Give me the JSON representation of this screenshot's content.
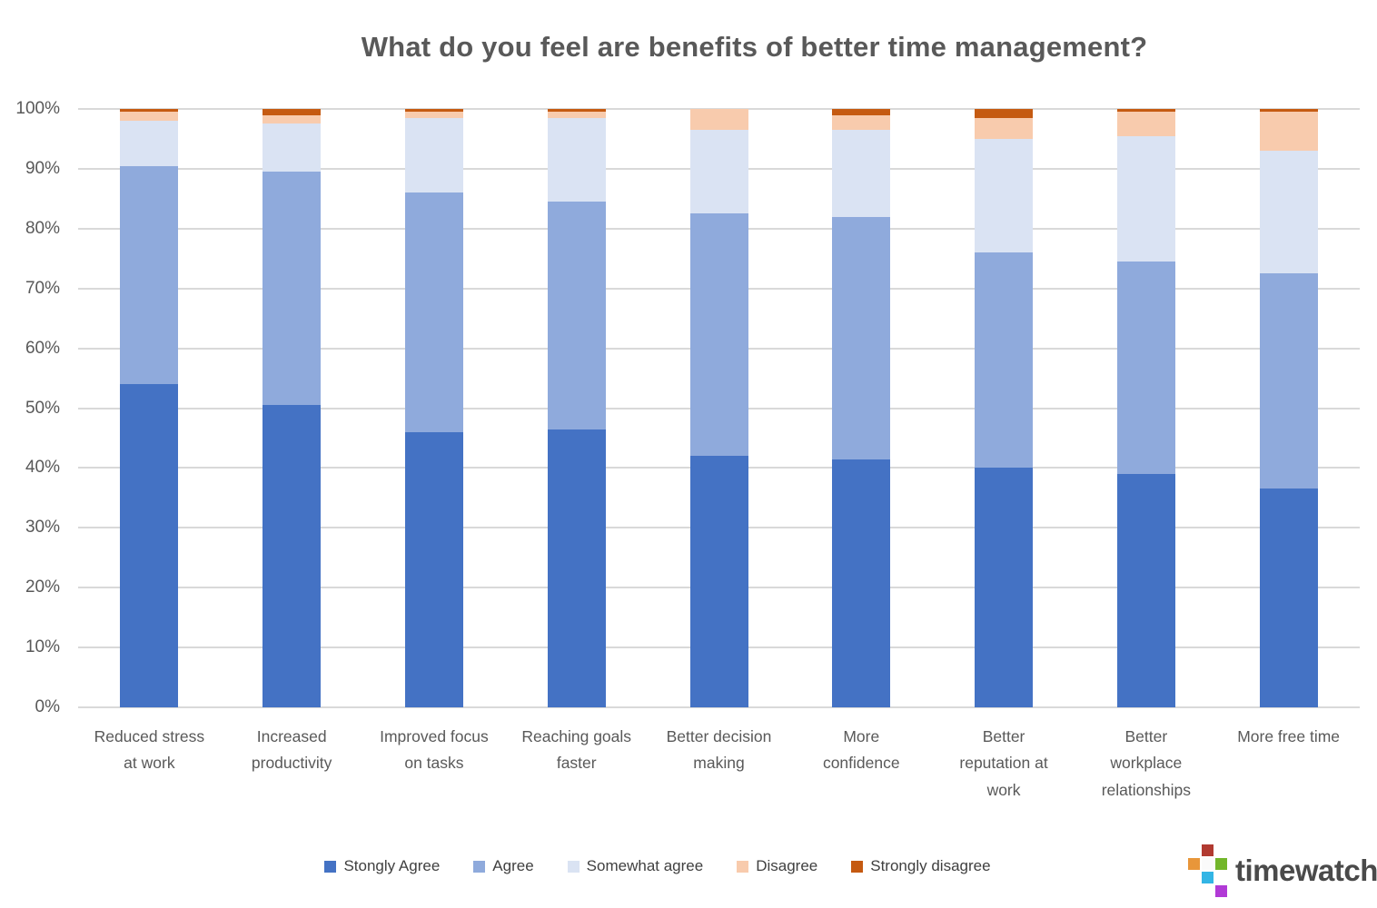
{
  "chart_data": {
    "type": "bar",
    "stacked": true,
    "percent_stacked": true,
    "title": "What do you feel are benefits of better time management?",
    "xlabel": "",
    "ylabel": "",
    "ylim": [
      0,
      100
    ],
    "grid": true,
    "legend_position": "bottom",
    "y_ticks": [
      "0%",
      "10%",
      "20%",
      "30%",
      "40%",
      "50%",
      "60%",
      "70%",
      "80%",
      "90%",
      "100%"
    ],
    "categories": [
      "Reduced stress at work",
      "Increased productivity",
      "Improved focus on tasks",
      "Reaching goals faster",
      "Better decision making",
      "More confidence",
      "Better reputation at work",
      "Better workplace relationships",
      "More free time"
    ],
    "category_label_lines": [
      "Reduced stress\nat work",
      "Increased\nproductivity",
      "Improved focus\non tasks",
      "Reaching goals\nfaster",
      "Better decision\nmaking",
      "More\nconfidence",
      "Better\nreputation at\nwork",
      "Better\nworkplace\nrelationships",
      "More free time"
    ],
    "series": [
      {
        "name": "Stongly Agree",
        "color": "#4472C4",
        "values": [
          54,
          50.5,
          46,
          46.5,
          42,
          41.5,
          40,
          39,
          36.5
        ]
      },
      {
        "name": "Agree",
        "color": "#8FAADC",
        "values": [
          36.5,
          39,
          40,
          38,
          40.5,
          40.5,
          36,
          35.5,
          36
        ]
      },
      {
        "name": "Somewhat agree",
        "color": "#DAE3F3",
        "values": [
          7.5,
          8,
          12.5,
          14,
          14,
          14.5,
          19,
          21,
          20.5
        ]
      },
      {
        "name": "Disagree",
        "color": "#F8CBAD",
        "values": [
          1.5,
          1.5,
          1,
          1,
          3.5,
          2.5,
          3.5,
          4,
          6.5
        ]
      },
      {
        "name": "Strongly disagree",
        "color": "#C55A11",
        "values": [
          0.5,
          1,
          0.5,
          0.5,
          0,
          1,
          1.5,
          0.5,
          0.5
        ]
      }
    ]
  },
  "colors": {
    "gridline": "#d9d9d9",
    "axis_text": "#595959",
    "legend_text": "#404040",
    "title_text": "#595959"
  },
  "logo": {
    "text": "timewatch",
    "squares": [
      {
        "name": "red",
        "color": "#b13a30",
        "col": 1,
        "row": 0
      },
      {
        "name": "orange",
        "color": "#e8963a",
        "col": 0,
        "row": 1
      },
      {
        "name": "white",
        "color": "#fafafa",
        "col": 1,
        "row": 1
      },
      {
        "name": "green",
        "color": "#72b62a",
        "col": 2,
        "row": 1
      },
      {
        "name": "cyan",
        "color": "#33b5e5",
        "col": 1,
        "row": 2
      },
      {
        "name": "purple",
        "color": "#b13ad6",
        "col": 2,
        "row": 3
      }
    ]
  }
}
